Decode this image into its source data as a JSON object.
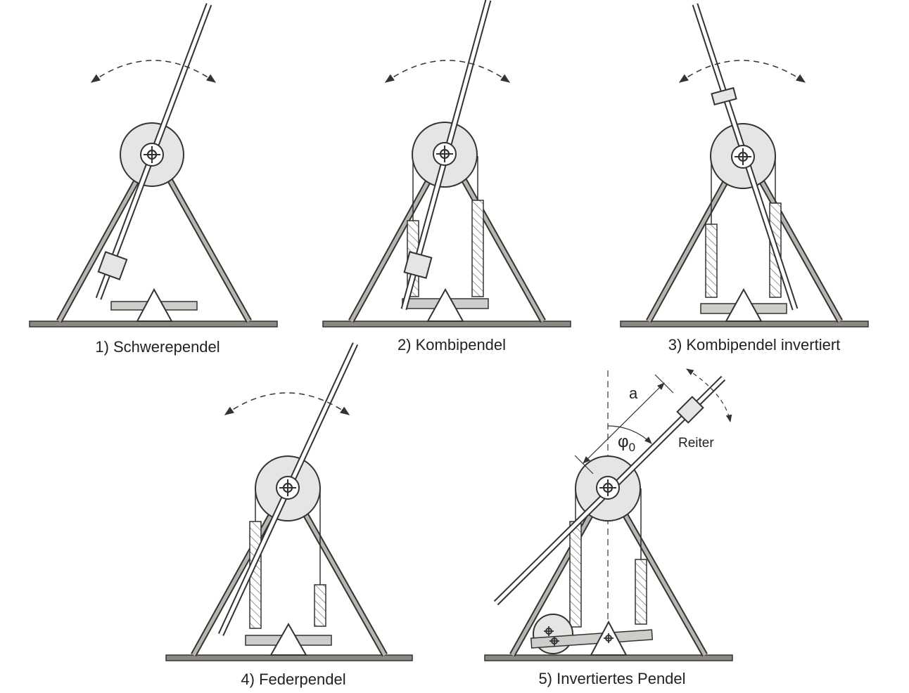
{
  "panels": [
    {
      "id": "p1",
      "caption": "1) Schwerependel"
    },
    {
      "id": "p2",
      "caption": "2) Kombipendel"
    },
    {
      "id": "p3",
      "caption": "3) Kombipendel invertiert"
    },
    {
      "id": "p4",
      "caption": "4) Federpendel"
    },
    {
      "id": "p5",
      "caption": "5) Invertiertes Pendel"
    }
  ],
  "annotations": {
    "distance_label": "a",
    "angle_label": "φ",
    "angle_subscript": "0",
    "rider_label": "Reiter"
  },
  "colors": {
    "frame": "#b8b4ae",
    "outline": "#333333",
    "wheel": "#e6e5e3",
    "base": "#8c8884"
  }
}
